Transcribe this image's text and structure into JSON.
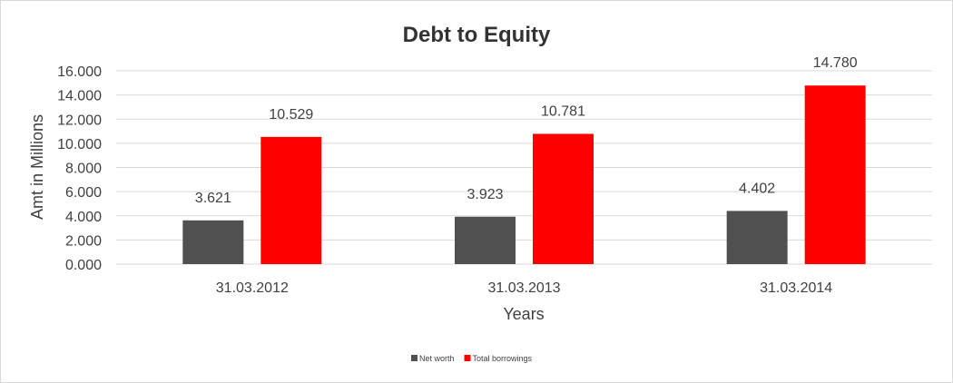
{
  "chart_data": {
    "type": "bar",
    "title": "Debt to Equity",
    "xlabel": "Years",
    "ylabel": "Amt in Millions",
    "categories": [
      "31.03.2012",
      "31.03.2013",
      "31.03.2014"
    ],
    "series": [
      {
        "name": "Net worth",
        "values": [
          3.621,
          3.923,
          4.402
        ],
        "color": "#505050"
      },
      {
        "name": "Total borrowings",
        "values": [
          10.529,
          10.781,
          14.78
        ],
        "color": "#ff0000"
      }
    ],
    "value_labels": [
      [
        "3.621",
        "3.923",
        "4.402"
      ],
      [
        "10.529",
        "10.781",
        "14.780"
      ]
    ],
    "ylim": [
      0,
      16
    ],
    "yticks": [
      0,
      2,
      4,
      6,
      8,
      10,
      12,
      14,
      16
    ],
    "ytick_labels": [
      "0.000",
      "2.000",
      "4.000",
      "6.000",
      "8.000",
      "10.000",
      "12.000",
      "14.000",
      "16.000"
    ],
    "grid": true,
    "legend": "bottom"
  }
}
